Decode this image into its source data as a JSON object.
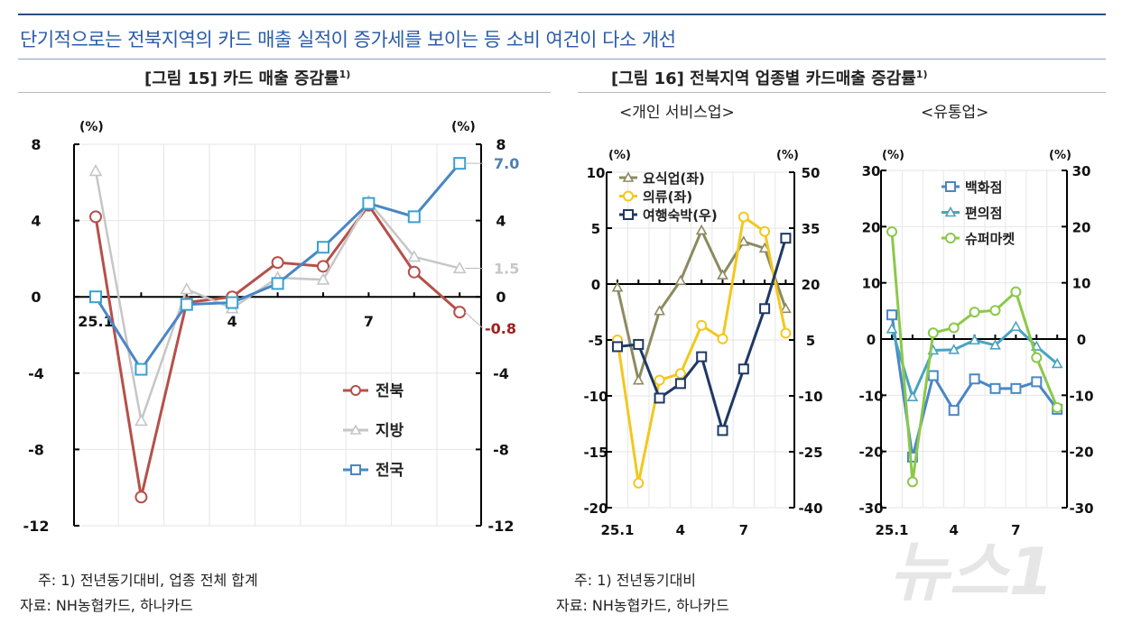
{
  "headline": "단기적으로는 전북지역의 카드 매출 실적이 증가세를 보이는 등 소비 여건이 다소 개선",
  "figure15": {
    "title": "[그림 15] 카드 매출 증감률",
    "sup": "1)"
  },
  "figure16": {
    "title": "[그림 16] 전북지역 업종별 카드매출 증감률",
    "sup": "1)",
    "panel_left": "<개인 서비스업>",
    "panel_right": "<유통업>"
  },
  "notes_left": {
    "note": "주: 1) 전년동기대비, 업종 전체 합계",
    "source": "자료: NH농협카드, 하나카드"
  },
  "notes_right": {
    "note": "주: 1) 전년동기대비",
    "source": "자료: NH농협카드, 하나카드"
  },
  "watermark": "뉴스1",
  "chart_data": [
    {
      "type": "line",
      "title": "[그림 15] 카드 매출 증감률",
      "x": [
        "25.1",
        "2",
        "3",
        "4",
        "5",
        "6",
        "7",
        "8",
        "9"
      ],
      "x_tick_labels": [
        "25.1",
        "4",
        "7"
      ],
      "ylabel_left": "(%)",
      "ylabel_right": "(%)",
      "ylim": [
        -12,
        8
      ],
      "yticks": [
        "8",
        "4",
        "0",
        "-4",
        "-8",
        "-12"
      ],
      "grid": true,
      "legend": "bottom-right",
      "series": [
        {
          "name": "전북",
          "color": "#b5504a",
          "marker": "circle",
          "values": [
            4.2,
            -10.5,
            -0.3,
            0.0,
            1.8,
            1.6,
            4.8,
            1.3,
            -0.8
          ],
          "end_label": "-0.8"
        },
        {
          "name": "지방",
          "color": "#c6c6c6",
          "marker": "triangle",
          "values": [
            6.6,
            -6.5,
            0.4,
            -0.6,
            1.0,
            0.9,
            5.0,
            2.1,
            1.5
          ],
          "end_label": "1.5"
        },
        {
          "name": "전국",
          "color": "#4a86c5",
          "marker": "square",
          "values": [
            0.0,
            -3.8,
            -0.4,
            -0.3,
            0.7,
            2.6,
            4.9,
            4.2,
            7.0
          ],
          "end_label": "7.0"
        }
      ]
    },
    {
      "type": "line",
      "title": "<개인 서비스업>",
      "x": [
        "25.1",
        "2",
        "3",
        "4",
        "5",
        "6",
        "7",
        "8",
        "9"
      ],
      "x_tick_labels": [
        "25.1",
        "4",
        "7"
      ],
      "ylabel_left": "(%)",
      "ylabel_right": "(%)",
      "ylim_left": [
        -20,
        10
      ],
      "ylim_right": [
        -40,
        50
      ],
      "yticks_left": [
        "10",
        "5",
        "0",
        "-5",
        "-10",
        "-15",
        "-20"
      ],
      "yticks_right": [
        "50",
        "35",
        "20",
        "5",
        "-10",
        "-25",
        "-40"
      ],
      "grid": true,
      "legend": "top-left",
      "series": [
        {
          "name": "요식업(좌)",
          "axis": "left",
          "color": "#8c8a60",
          "marker": "triangle",
          "values": [
            -0.3,
            -8.6,
            -2.4,
            0.3,
            4.8,
            0.8,
            3.8,
            3.2,
            -2.2
          ]
        },
        {
          "name": "의류(좌)",
          "axis": "left",
          "color": "#f2c81e",
          "marker": "circle",
          "values": [
            -5.0,
            -17.8,
            -8.6,
            -8.0,
            -3.7,
            -4.9,
            6.0,
            4.7,
            -4.4
          ]
        },
        {
          "name": "여행숙박(우)",
          "axis": "right",
          "color": "#1f3864",
          "marker": "square",
          "values": [
            3.2,
            3.8,
            -10.6,
            -6.7,
            0.5,
            -19.3,
            -2.8,
            13.4,
            32.3
          ]
        }
      ]
    },
    {
      "type": "line",
      "title": "<유통업>",
      "x": [
        "25.1",
        "2",
        "3",
        "4",
        "5",
        "6",
        "7",
        "8",
        "9"
      ],
      "x_tick_labels": [
        "25.1",
        "4",
        "7"
      ],
      "ylabel_left": "(%)",
      "ylabel_right": "(%)",
      "ylim": [
        -30,
        30
      ],
      "yticks": [
        "30",
        "20",
        "10",
        "0",
        "-10",
        "-20",
        "-30"
      ],
      "grid": true,
      "legend": "top",
      "series": [
        {
          "name": "백화점",
          "color": "#4a86c5",
          "marker": "square",
          "values": [
            4.3,
            -21.0,
            -6.5,
            -12.7,
            -7.1,
            -8.8,
            -8.8,
            -7.6,
            -12.5
          ]
        },
        {
          "name": "편의점",
          "color": "#4aa3c2",
          "marker": "triangle",
          "values": [
            1.8,
            -10.3,
            -2.0,
            -1.9,
            -0.2,
            -1.1,
            2.2,
            -1.3,
            -4.4
          ]
        },
        {
          "name": "슈퍼마켓",
          "color": "#8cc84a",
          "marker": "circle",
          "values": [
            19.1,
            -25.4,
            1.1,
            2.0,
            4.8,
            5.1,
            8.4,
            -3.3,
            -12.2
          ]
        }
      ]
    }
  ]
}
